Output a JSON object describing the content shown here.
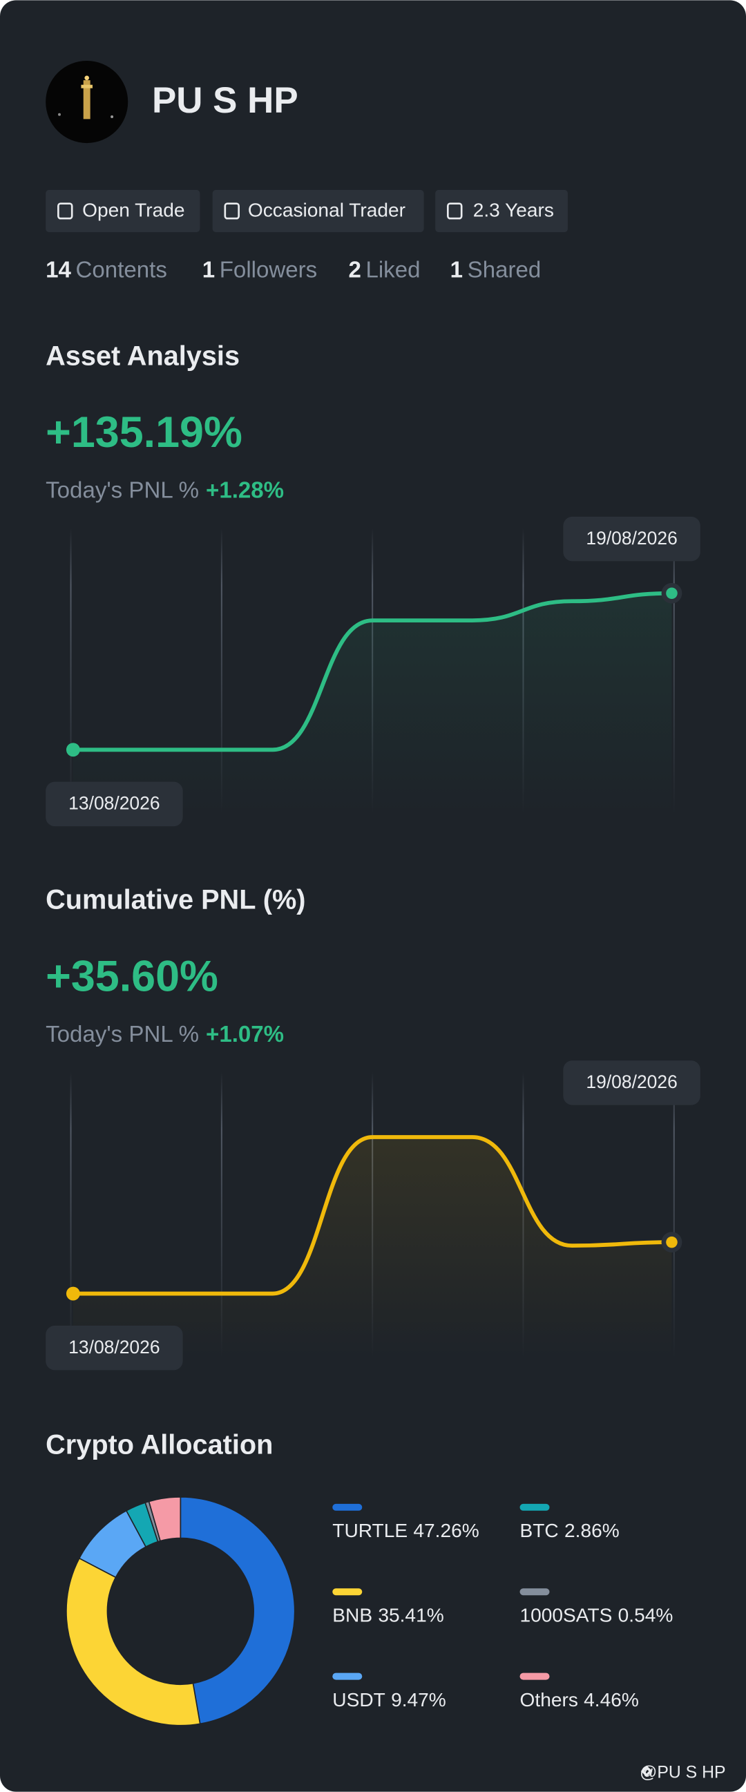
{
  "profile": {
    "name": "PU S HP",
    "tags": [
      "Open Trade",
      "Occasional Trader",
      "2.3 Years"
    ],
    "stats": [
      {
        "count": 14,
        "label": "Contents"
      },
      {
        "count": 1,
        "label": "Followers"
      },
      {
        "count": 2,
        "label": "Liked"
      },
      {
        "count": 1,
        "label": "Shared"
      }
    ]
  },
  "chart_data": [
    {
      "type": "line",
      "title": "Asset Analysis",
      "headline": "+135.19%",
      "pnl_label": "Today's PNL %",
      "pnl_value": "+1.28%",
      "categories": [
        "13/08/2026",
        null,
        null,
        null,
        null,
        null,
        "19/08/2026"
      ],
      "values": [
        0,
        0,
        0,
        111.7,
        111.7,
        128.3,
        135.19
      ],
      "color": "#2ebd85"
    },
    {
      "type": "line",
      "title": "Cumulative PNL (%)",
      "headline": "+35.60%",
      "pnl_label": "Today's PNL %",
      "pnl_value": "+1.07%",
      "categories": [
        "13/08/2026",
        null,
        null,
        null,
        null,
        null,
        "19/08/2026"
      ],
      "values": [
        0,
        0,
        0,
        108.4,
        108.4,
        33.2,
        35.6
      ],
      "color": "#f0b90b"
    },
    {
      "type": "donut",
      "title": "Crypto Allocation",
      "categories": [
        "TURTLE",
        "BNB",
        "USDT",
        "BTC",
        "1000SATS",
        "Others"
      ],
      "values": [
        47.26,
        35.41,
        9.47,
        2.86,
        0.54,
        4.46
      ],
      "value_labels": [
        "47.26%",
        "35.41%",
        "9.47%",
        "2.86%",
        "0.54%",
        "4.46%"
      ],
      "colors": [
        "#1f6fd8",
        "#fcd535",
        "#5aa7f5",
        "#14a7b3",
        "#848e9c",
        "#f59aa6"
      ]
    }
  ],
  "watermark": "@PU S HP"
}
